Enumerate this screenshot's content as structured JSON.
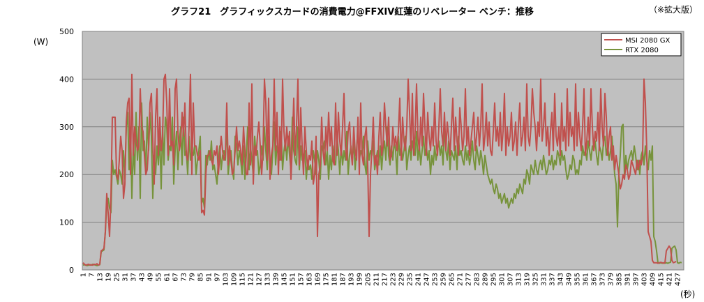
{
  "chart_data": {
    "type": "line",
    "title": "グラフ21　グラフィックスカードの消費電力@FFXIV紅蓮のリベレーター ベンチ：推移",
    "note": "（※拡大版）",
    "xlabel": "(秒)",
    "ylabel": "(W)",
    "ylim": [
      0,
      500
    ],
    "yticks": [
      0,
      100,
      200,
      300,
      400,
      500
    ],
    "x_range": [
      1,
      431
    ],
    "x_tick_step": 6,
    "grid": true,
    "legend_position": "top-right",
    "series": [
      {
        "name": "MSI 2080 GX",
        "color": "#c0504d",
        "values": [
          15,
          12,
          10,
          11,
          12,
          10,
          11,
          10,
          12,
          11,
          13,
          10,
          12,
          40,
          42,
          45,
          80,
          160,
          120,
          70,
          150,
          320,
          320,
          320,
          200,
          190,
          230,
          280,
          250,
          150,
          180,
          310,
          350,
          360,
          200,
          410,
          240,
          300,
          270,
          250,
          260,
          380,
          300,
          290,
          240,
          200,
          210,
          260,
          350,
          370,
          270,
          180,
          320,
          380,
          240,
          320,
          250,
          280,
          400,
          410,
          350,
          240,
          380,
          260,
          270,
          220,
          380,
          400,
          290,
          250,
          270,
          330,
          280,
          350,
          240,
          230,
          300,
          410,
          200,
          350,
          260,
          260,
          240,
          230,
          250,
          120,
          125,
          115,
          200,
          240,
          240,
          250,
          230,
          220,
          250,
          240,
          260,
          200,
          240,
          280,
          250,
          230,
          240,
          350,
          220,
          260,
          230,
          200,
          210,
          250,
          300,
          250,
          270,
          250,
          220,
          300,
          250,
          200,
          200,
          350,
          220,
          390,
          180,
          260,
          240,
          280,
          310,
          260,
          200,
          250,
          400,
          350,
          230,
          360,
          190,
          240,
          260,
          400,
          250,
          330,
          200,
          300,
          230,
          400,
          290,
          250,
          300,
          260,
          290,
          190,
          260,
          360,
          240,
          300,
          400,
          220,
          340,
          260,
          200,
          300,
          250,
          210,
          240,
          230,
          270,
          180,
          200,
          280,
          70,
          200,
          220,
          320,
          250,
          220,
          300,
          250,
          330,
          260,
          300,
          230,
          220,
          350,
          240,
          330,
          270,
          240,
          300,
          370,
          260,
          230,
          290,
          310,
          250,
          220,
          300,
          250,
          230,
          320,
          200,
          350,
          240,
          220,
          280,
          300,
          220,
          70,
          200,
          250,
          320,
          220,
          240,
          200,
          280,
          330,
          240,
          260,
          350,
          300,
          260,
          320,
          230,
          240,
          300,
          260,
          280,
          250,
          290,
          360,
          230,
          320,
          270,
          250,
          300,
          400,
          330,
          250,
          370,
          240,
          290,
          390,
          280,
          250,
          320,
          260,
          370,
          300,
          240,
          330,
          280,
          250,
          300,
          260,
          350,
          270,
          240,
          300,
          380,
          290,
          260,
          330,
          250,
          310,
          280,
          240,
          300,
          360,
          250,
          320,
          270,
          240,
          340,
          300,
          250,
          280,
          380,
          260,
          300,
          240,
          270,
          300,
          330,
          250,
          280,
          320,
          260,
          300,
          390,
          250,
          280,
          330,
          260,
          310,
          250,
          240,
          290,
          350,
          270,
          300,
          260,
          330,
          250,
          290,
          370,
          240,
          300,
          260,
          280,
          330,
          250,
          270,
          310,
          240,
          300,
          350,
          260,
          280,
          320,
          250,
          390,
          280,
          260,
          300,
          380,
          330,
          300,
          250,
          310,
          280,
          400,
          270,
          300,
          350,
          260,
          300,
          240,
          290,
          330,
          250,
          370,
          280,
          260,
          300,
          240,
          350,
          270,
          300,
          250,
          380,
          260,
          330,
          280,
          300,
          250,
          390,
          260,
          330,
          280,
          250,
          300,
          380,
          240,
          270,
          320,
          260,
          380,
          300,
          250,
          290,
          270,
          330,
          250,
          380,
          300,
          260,
          370,
          320,
          240,
          280,
          300,
          230,
          260,
          210,
          240,
          220,
          200,
          170,
          180,
          200,
          190,
          220,
          210,
          190,
          200,
          230,
          220,
          210,
          200,
          230,
          210,
          230,
          220,
          240,
          400,
          350,
          250,
          80,
          70,
          60,
          20,
          15,
          15,
          15,
          14,
          15,
          16,
          15,
          14,
          15,
          40,
          45,
          50,
          45,
          20,
          15,
          16,
          18
        ]
      },
      {
        "name": "RTX 2080",
        "color": "#77933c",
        "values": [
          10,
          11,
          10,
          9,
          10,
          11,
          10,
          12,
          11,
          10,
          9,
          10,
          11,
          38,
          40,
          42,
          80,
          140,
          150,
          130,
          120,
          230,
          200,
          210,
          195,
          180,
          210,
          200,
          180,
          250,
          190,
          300,
          330,
          210,
          300,
          150,
          260,
          200,
          330,
          230,
          300,
          150,
          350,
          250,
          270,
          200,
          320,
          250,
          330,
          280,
          150,
          240,
          200,
          260,
          220,
          280,
          170,
          300,
          220,
          320,
          300,
          230,
          260,
          250,
          320,
          180,
          250,
          290,
          210,
          270,
          300,
          220,
          320,
          240,
          250,
          200,
          280,
          230,
          250,
          240,
          260,
          200,
          230,
          250,
          280,
          140,
          150,
          130,
          240,
          220,
          250,
          230,
          270,
          210,
          220,
          200,
          180,
          230,
          260,
          210,
          240,
          250,
          230,
          310,
          200,
          230,
          250,
          210,
          190,
          280,
          260,
          220,
          250,
          230,
          200,
          260,
          190,
          240,
          300,
          210,
          260,
          230,
          200,
          280,
          240,
          250,
          200,
          220,
          260,
          230,
          300,
          250,
          210,
          280,
          230,
          200,
          250,
          310,
          220,
          260,
          240,
          230,
          290,
          210,
          250,
          270,
          230,
          280,
          240,
          210,
          320,
          250,
          230,
          220,
          300,
          210,
          260,
          230,
          240,
          250,
          190,
          230,
          210,
          220,
          190,
          250,
          230,
          200,
          250,
          230,
          190,
          260,
          250,
          270,
          220,
          250,
          190,
          240,
          210,
          260,
          230,
          220,
          280,
          250,
          200,
          260,
          220,
          250,
          230,
          290,
          200,
          240,
          260,
          230,
          270,
          210,
          250,
          300,
          230,
          250,
          240,
          280,
          220,
          200,
          270,
          230,
          250,
          240,
          270,
          210,
          230,
          250,
          220,
          260,
          210,
          250,
          270,
          230,
          300,
          240,
          220,
          260,
          230,
          270,
          250,
          200,
          280,
          240,
          260,
          230,
          250,
          280,
          210,
          240,
          260,
          230,
          270,
          250,
          240,
          290,
          230,
          260,
          220,
          250,
          280,
          240,
          260,
          230,
          250,
          200,
          240,
          220,
          260,
          230,
          250,
          270,
          240,
          260,
          220,
          300,
          250,
          230,
          270,
          210,
          250,
          240,
          230,
          260,
          210,
          280,
          240,
          250,
          230,
          220,
          260,
          230,
          250,
          220,
          240,
          270,
          230,
          210,
          260,
          240,
          220,
          250,
          230,
          200,
          240,
          220,
          200,
          190,
          180,
          190,
          170,
          160,
          180,
          170,
          150,
          160,
          140,
          150,
          160,
          140,
          150,
          130,
          140,
          150,
          140,
          160,
          150,
          170,
          160,
          180,
          170,
          160,
          190,
          180,
          210,
          200,
          180,
          220,
          210,
          200,
          230,
          210,
          200,
          220,
          230,
          210,
          240,
          220,
          200,
          210,
          230,
          220,
          240,
          210,
          230,
          220,
          250,
          240,
          220,
          250,
          230,
          240,
          210,
          190,
          200,
          220,
          210,
          240,
          230,
          200,
          210,
          200,
          230,
          220,
          260,
          240,
          250,
          230,
          270,
          250,
          230,
          260,
          250,
          270,
          240,
          220,
          260,
          250,
          230,
          270,
          280,
          240,
          260,
          230,
          250,
          280,
          240,
          200,
          180,
          90,
          200,
          240,
          300,
          305,
          200,
          240,
          210,
          230,
          240,
          250,
          230,
          260,
          240,
          210,
          230,
          200,
          240,
          250,
          220,
          260,
          230,
          210,
          250,
          230,
          260,
          70,
          60,
          40,
          15,
          14,
          15,
          14,
          15,
          14,
          15,
          14,
          15,
          16,
          45,
          48,
          50,
          42,
          15,
          14,
          16,
          15
        ]
      }
    ]
  }
}
